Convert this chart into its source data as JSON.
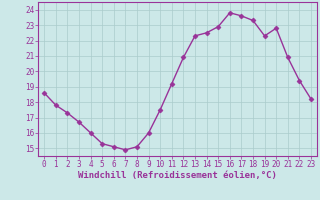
{
  "x": [
    0,
    1,
    2,
    3,
    4,
    5,
    6,
    7,
    8,
    9,
    10,
    11,
    12,
    13,
    14,
    15,
    16,
    17,
    18,
    19,
    20,
    21,
    22,
    23
  ],
  "y": [
    18.6,
    17.8,
    17.3,
    16.7,
    16.0,
    15.3,
    15.1,
    14.9,
    15.1,
    16.0,
    17.5,
    19.2,
    20.9,
    22.3,
    22.5,
    22.9,
    23.8,
    23.6,
    23.3,
    22.3,
    22.8,
    20.9,
    19.4,
    18.2
  ],
  "line_color": "#993399",
  "marker": "D",
  "markersize": 2.5,
  "linewidth": 1.0,
  "bg_color": "#cce8e8",
  "grid_color": "#aacccc",
  "xlabel": "Windchill (Refroidissement éolien,°C)",
  "xlabel_color": "#993399",
  "xlabel_fontsize": 6.5,
  "tick_color": "#993399",
  "tick_fontsize": 5.5,
  "ylim": [
    14.5,
    24.5
  ],
  "yticks": [
    15,
    16,
    17,
    18,
    19,
    20,
    21,
    22,
    23,
    24
  ],
  "xlim": [
    -0.5,
    23.5
  ],
  "xticks": [
    0,
    1,
    2,
    3,
    4,
    5,
    6,
    7,
    8,
    9,
    10,
    11,
    12,
    13,
    14,
    15,
    16,
    17,
    18,
    19,
    20,
    21,
    22,
    23
  ]
}
